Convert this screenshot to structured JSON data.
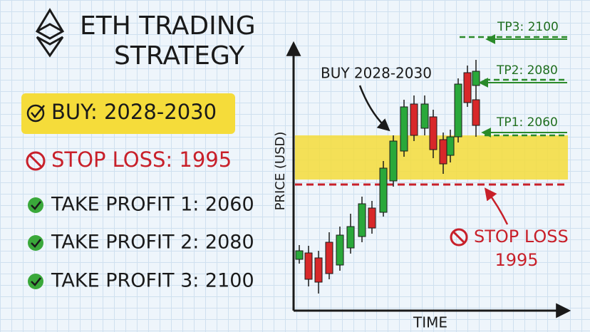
{
  "title_lines": [
    "ETH TRADING",
    "STRATEGY"
  ],
  "summary": [
    "BUY: 2028-2030",
    "STOP LOSS: 1995",
    "TAKE PROFIT 1: 2060",
    "TAKE PROFIT 2: 2080",
    "TAKE PROFIT 3: 2100"
  ],
  "chart": {
    "y_axis_label": "PRICE (USD)",
    "x_axis_label": "TIME",
    "buy_annotation": "BUY 2028-2030",
    "targets": [
      "TP3: 2100",
      "TP2: 2080",
      "TP1: 2060"
    ],
    "stop_annotation": [
      "STOP LOSS",
      "1995"
    ]
  }
}
